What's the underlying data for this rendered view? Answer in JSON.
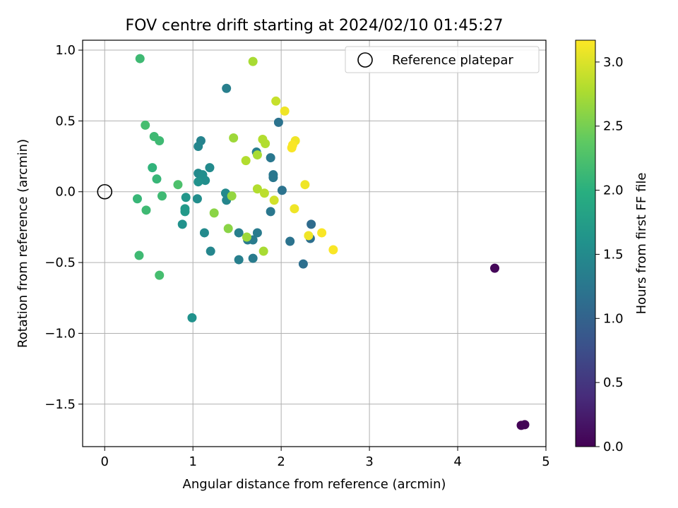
{
  "chart_data": {
    "type": "scatter",
    "title": "FOV centre drift starting at 2024/02/10 01:45:27",
    "xlabel": "Angular distance from reference (arcmin)",
    "ylabel": "Rotation from reference (arcmin)",
    "xlim": [
      -0.25,
      5.0
    ],
    "ylim": [
      -1.8,
      1.07
    ],
    "xticks": [
      0,
      1,
      2,
      3,
      4,
      5
    ],
    "xtick_labels": [
      "0",
      "1",
      "2",
      "3",
      "4",
      "5"
    ],
    "yticks": [
      -1.5,
      -1.0,
      -0.5,
      0.0,
      0.5,
      1.0
    ],
    "ytick_labels": [
      "−1.5",
      "−1.0",
      "−0.5",
      "0.0",
      "0.5",
      "1.0"
    ],
    "grid": true,
    "legend": {
      "position": "top-right",
      "label": "Reference platepar"
    },
    "reference_point": {
      "x": 0.0,
      "y": 0.0
    },
    "colorbar": {
      "label": "Hours from first FF file",
      "colormap": "viridis",
      "range": [
        0.0,
        3.17
      ],
      "ticks": [
        0.0,
        0.5,
        1.0,
        1.5,
        2.0,
        2.5,
        3.0
      ],
      "tick_labels": [
        "0.0",
        "0.5",
        "1.0",
        "1.5",
        "2.0",
        "2.5",
        "3.0"
      ]
    },
    "points": [
      {
        "x": 4.72,
        "y": -1.65,
        "c": 0.02
      },
      {
        "x": 4.76,
        "y": -1.645,
        "c": 0.03
      },
      {
        "x": 4.42,
        "y": -0.54,
        "c": 0.05
      },
      {
        "x": 1.38,
        "y": 0.73,
        "c": 1.35
      },
      {
        "x": 1.97,
        "y": 0.49,
        "c": 1.2
      },
      {
        "x": 1.09,
        "y": 0.36,
        "c": 1.4
      },
      {
        "x": 1.06,
        "y": 0.32,
        "c": 1.45
      },
      {
        "x": 1.72,
        "y": 0.28,
        "c": 1.35
      },
      {
        "x": 1.88,
        "y": 0.24,
        "c": 1.25
      },
      {
        "x": 1.19,
        "y": 0.17,
        "c": 1.5
      },
      {
        "x": 1.06,
        "y": 0.13,
        "c": 1.5
      },
      {
        "x": 1.11,
        "y": 0.12,
        "c": 1.55
      },
      {
        "x": 1.91,
        "y": 0.12,
        "c": 1.25
      },
      {
        "x": 1.91,
        "y": 0.1,
        "c": 1.25
      },
      {
        "x": 1.14,
        "y": 0.08,
        "c": 1.55
      },
      {
        "x": 1.06,
        "y": 0.07,
        "c": 1.6
      },
      {
        "x": 2.01,
        "y": 0.01,
        "c": 1.2
      },
      {
        "x": 1.37,
        "y": -0.01,
        "c": 1.5
      },
      {
        "x": 0.92,
        "y": -0.04,
        "c": 1.65
      },
      {
        "x": 1.05,
        "y": -0.05,
        "c": 1.55
      },
      {
        "x": 1.38,
        "y": -0.06,
        "c": 1.45
      },
      {
        "x": 0.91,
        "y": -0.12,
        "c": 1.7
      },
      {
        "x": 0.91,
        "y": -0.14,
        "c": 1.7
      },
      {
        "x": 1.88,
        "y": -0.14,
        "c": 1.25
      },
      {
        "x": 0.88,
        "y": -0.23,
        "c": 1.6
      },
      {
        "x": 2.34,
        "y": -0.23,
        "c": 1.1
      },
      {
        "x": 1.13,
        "y": -0.29,
        "c": 1.5
      },
      {
        "x": 1.52,
        "y": -0.29,
        "c": 1.35
      },
      {
        "x": 1.73,
        "y": -0.29,
        "c": 1.3
      },
      {
        "x": 2.33,
        "y": -0.33,
        "c": 1.15
      },
      {
        "x": 1.62,
        "y": -0.34,
        "c": 1.3
      },
      {
        "x": 1.68,
        "y": -0.34,
        "c": 1.3
      },
      {
        "x": 2.1,
        "y": -0.35,
        "c": 1.2
      },
      {
        "x": 1.2,
        "y": -0.42,
        "c": 1.45
      },
      {
        "x": 1.52,
        "y": -0.48,
        "c": 1.35
      },
      {
        "x": 1.68,
        "y": -0.47,
        "c": 1.3
      },
      {
        "x": 2.25,
        "y": -0.51,
        "c": 1.15
      },
      {
        "x": 0.99,
        "y": -0.89,
        "c": 1.6
      },
      {
        "x": 0.4,
        "y": 0.94,
        "c": 2.15
      },
      {
        "x": 0.46,
        "y": 0.47,
        "c": 2.2
      },
      {
        "x": 0.56,
        "y": 0.39,
        "c": 2.15
      },
      {
        "x": 0.62,
        "y": 0.36,
        "c": 2.15
      },
      {
        "x": 0.54,
        "y": 0.17,
        "c": 2.05
      },
      {
        "x": 0.59,
        "y": 0.09,
        "c": 2.1
      },
      {
        "x": 0.83,
        "y": 0.05,
        "c": 2.25
      },
      {
        "x": 0.65,
        "y": -0.03,
        "c": 2.15
      },
      {
        "x": 0.37,
        "y": -0.05,
        "c": 2.1
      },
      {
        "x": 0.47,
        "y": -0.13,
        "c": 2.15
      },
      {
        "x": 0.39,
        "y": -0.45,
        "c": 2.15
      },
      {
        "x": 0.62,
        "y": -0.59,
        "c": 2.2
      },
      {
        "x": 1.68,
        "y": 0.92,
        "c": 2.75
      },
      {
        "x": 1.94,
        "y": 0.64,
        "c": 2.9
      },
      {
        "x": 2.04,
        "y": 0.57,
        "c": 3.1
      },
      {
        "x": 1.46,
        "y": 0.38,
        "c": 2.7
      },
      {
        "x": 1.79,
        "y": 0.37,
        "c": 2.8
      },
      {
        "x": 1.82,
        "y": 0.34,
        "c": 2.8
      },
      {
        "x": 2.16,
        "y": 0.36,
        "c": 3.1
      },
      {
        "x": 2.13,
        "y": 0.33,
        "c": 3.15
      },
      {
        "x": 2.12,
        "y": 0.31,
        "c": 3.15
      },
      {
        "x": 1.73,
        "y": 0.26,
        "c": 2.75
      },
      {
        "x": 1.6,
        "y": 0.22,
        "c": 2.8
      },
      {
        "x": 2.27,
        "y": 0.05,
        "c": 3.1
      },
      {
        "x": 1.73,
        "y": 0.02,
        "c": 2.8
      },
      {
        "x": 1.81,
        "y": -0.01,
        "c": 2.85
      },
      {
        "x": 1.44,
        "y": -0.03,
        "c": 2.65
      },
      {
        "x": 1.92,
        "y": -0.06,
        "c": 2.95
      },
      {
        "x": 2.15,
        "y": -0.12,
        "c": 3.1
      },
      {
        "x": 1.24,
        "y": -0.15,
        "c": 2.6
      },
      {
        "x": 1.4,
        "y": -0.26,
        "c": 2.6
      },
      {
        "x": 2.46,
        "y": -0.29,
        "c": 3.15
      },
      {
        "x": 2.31,
        "y": -0.31,
        "c": 3.1
      },
      {
        "x": 1.61,
        "y": -0.32,
        "c": 2.7
      },
      {
        "x": 2.59,
        "y": -0.41,
        "c": 3.15
      },
      {
        "x": 1.8,
        "y": -0.42,
        "c": 2.75
      }
    ]
  }
}
